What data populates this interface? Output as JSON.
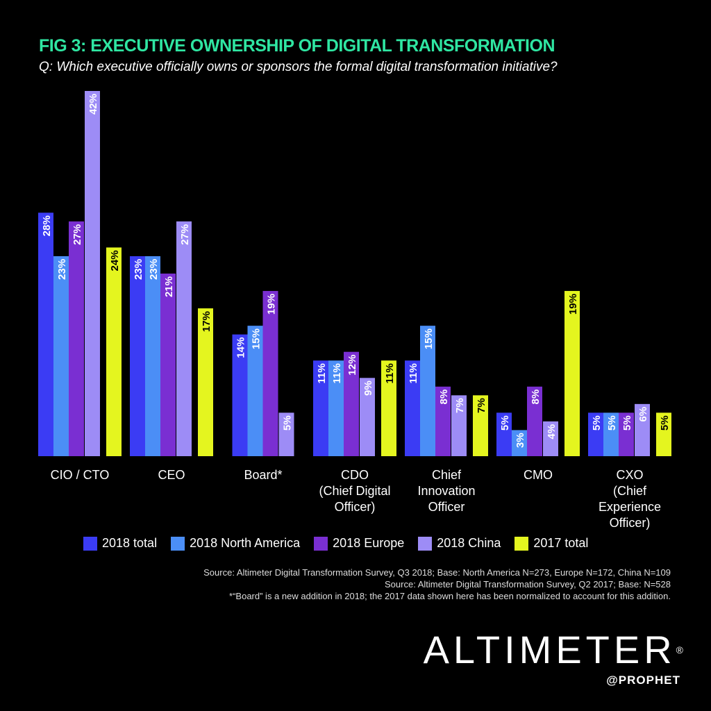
{
  "header": {
    "title": "FIG 3: EXECUTIVE OWNERSHIP OF DIGITAL TRANSFORMATION",
    "subtitle": "Q: Which executive officially owns or sponsors the formal digital transformation initiative?"
  },
  "chart_data": {
    "type": "bar",
    "title": "FIG 3: EXECUTIVE OWNERSHIP OF DIGITAL TRANSFORMATION",
    "categories": [
      [
        "CIO / CTO"
      ],
      [
        "CEO"
      ],
      [
        "Board*"
      ],
      [
        "CDO",
        "(Chief Digital",
        "Officer)"
      ],
      [
        "Chief",
        "Innovation",
        "Officer"
      ],
      [
        "CMO"
      ],
      [
        "CXO",
        "(Chief",
        "Experience",
        "Officer)"
      ]
    ],
    "series": [
      {
        "name": "2018 total",
        "color": "#3b3cf4",
        "values": [
          28,
          23,
          14,
          11,
          11,
          5,
          5
        ]
      },
      {
        "name": "2018 North America",
        "color": "#4b8ef6",
        "values": [
          23,
          23,
          15,
          11,
          15,
          3,
          5
        ]
      },
      {
        "name": "2018 Europe",
        "color": "#7a2fd2",
        "values": [
          27,
          21,
          19,
          12,
          8,
          8,
          5
        ]
      },
      {
        "name": "2018 China",
        "color": "#9d8cf6",
        "values": [
          42,
          27,
          5,
          9,
          7,
          4,
          6
        ]
      },
      {
        "name": "2017 total",
        "color": "#e4f51f",
        "values": [
          24,
          17,
          null,
          11,
          7,
          19,
          5
        ]
      }
    ],
    "value_suffix": "%",
    "ylim": [
      0,
      42
    ],
    "grid": false,
    "legend": "bottom"
  },
  "notes": [
    "Source: Altimeter Digital Transformation Survey, Q3 2018; Base: North America N=273, Europe N=172, China N=109",
    "Source: Altimeter Digital Transformation Survey, Q2 2017; Base: N=528",
    "*“Board” is a new addition in 2018; the 2017 data shown here has been normalized to account for this addition."
  ],
  "logo": {
    "main": "ALTIMETER",
    "reg": "®",
    "sub": "@PROPHET"
  }
}
